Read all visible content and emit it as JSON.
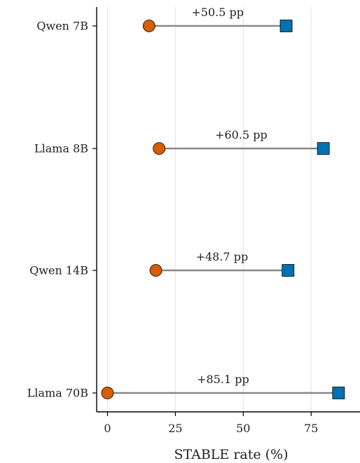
{
  "chart_data": {
    "type": "dumbbell",
    "xlabel": "STABLE rate (%)",
    "xlim": [
      -4,
      93
    ],
    "xticks": [
      0,
      25,
      50,
      75
    ],
    "grid": "vertical",
    "categories": [
      "Qwen 7B",
      "Llama 8B",
      "Qwen 14B",
      "Llama 70B"
    ],
    "series": [
      {
        "marker": "circle",
        "color": "#d55e00",
        "values": [
          15.3,
          19.0,
          17.8,
          0.0
        ]
      },
      {
        "marker": "square",
        "color": "#0072b2",
        "values": [
          65.8,
          79.5,
          66.5,
          85.1
        ]
      }
    ],
    "annotations": [
      "+50.5 pp",
      "+60.5 pp",
      "+48.7 pp",
      "+85.1 pp"
    ],
    "colors": {
      "connector": "#888888",
      "axis": "#000000",
      "grid": "#e8e8e8"
    }
  }
}
